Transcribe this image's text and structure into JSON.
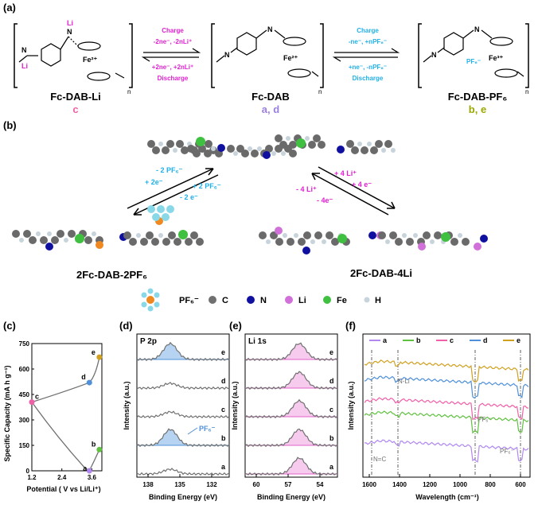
{
  "panel_a": {
    "label": "(a)",
    "left_arrow": {
      "top": [
        "Charge",
        "-2ne⁻, -2nLi⁺"
      ],
      "bottom": [
        "+2ne⁻, +2nLi⁺",
        "Discharge"
      ]
    },
    "right_arrow": {
      "top": [
        "Charge",
        "-ne⁻, +nPF₆⁻"
      ],
      "bottom": [
        "+ne⁻, -nPF₆⁻",
        "Discharge"
      ]
    },
    "compounds": [
      {
        "name": "Fc-DAB-Li",
        "tag": "c",
        "tag_color": "#f060a8"
      },
      {
        "name": "Fc-DAB",
        "tag": "a, d",
        "tag_color": "#9a80e0"
      },
      {
        "name": "Fc-DAB-PF₆",
        "tag": "b, e",
        "tag_color": "#9aa800"
      }
    ],
    "atom_labels": {
      "li": "Li",
      "n": "N",
      "fe2": "Fe²⁺",
      "fe3": "Fe³⁺",
      "pf6": "PF₆⁻",
      "sub_n": "n"
    }
  },
  "panel_b": {
    "label": "(b)",
    "left_arrow": {
      "top": [
        "- 2 PF₆⁻",
        "+ 2e⁻"
      ],
      "bottom": [
        "+ 2 PF₆⁻",
        "- 2 e⁻"
      ]
    },
    "right_arrow": {
      "top": [
        "+ 4 Li⁺",
        "+ 4 e⁻"
      ],
      "bottom": [
        "- 4 Li⁺",
        "- 4e⁻"
      ]
    },
    "left_name": "2Fc-DAB-2PF₆",
    "right_name": "2Fc-DAB-4Li",
    "legend": [
      {
        "label": "PF₆⁻",
        "color": "#f08820"
      },
      {
        "label": "C",
        "color": "#707070"
      },
      {
        "label": "N",
        "color": "#1010a0"
      },
      {
        "label": "Li",
        "color": "#d070d8"
      },
      {
        "label": "Fe",
        "color": "#40c040"
      },
      {
        "label": "H",
        "color": "#c8d4dc"
      }
    ]
  },
  "panel_c": {
    "label": "(c)",
    "ylabel": "Specific Capacity (mA h g⁻¹)",
    "xlabel": "Potential ( V vs Li/Li⁺)",
    "yticks": [
      "0",
      "150",
      "300",
      "450",
      "600",
      "750"
    ],
    "xticks": [
      "1.2",
      "2.4",
      "3.6"
    ],
    "points": [
      {
        "label": "a",
        "color": "#b088f0"
      },
      {
        "label": "b",
        "color": "#60c040"
      },
      {
        "label": "c",
        "color": "#f060a8"
      },
      {
        "label": "d",
        "color": "#5090d8"
      },
      {
        "label": "e",
        "color": "#d0a020"
      }
    ]
  },
  "panel_d": {
    "label": "(d)",
    "title": "P 2p",
    "ylabel": "Intensity (a.u.)",
    "xlabel": "Binding Energy (eV)",
    "xticks": [
      "138",
      "135",
      "132"
    ],
    "traces": [
      "e",
      "d",
      "c",
      "b",
      "a"
    ],
    "annotation": "PF₆⁻"
  },
  "panel_e": {
    "label": "(e)",
    "title": "Li 1s",
    "ylabel": "Intensity (a.u.)",
    "xlabel": "Binding Energy (eV)",
    "xticks": [
      "60",
      "57",
      "54"
    ],
    "traces": [
      "e",
      "d",
      "c",
      "b",
      "a"
    ]
  },
  "panel_f": {
    "label": "(f)",
    "ylabel": "Intensity (a.u.)",
    "xlabel": "Wavelength (cm⁻¹)",
    "xticks": [
      "1600",
      "1400",
      "1200",
      "1000",
      "800",
      "600"
    ],
    "legend": [
      {
        "label": "a",
        "color": "#b088f0"
      },
      {
        "label": "b",
        "color": "#60c040"
      },
      {
        "label": "c",
        "color": "#f060a8"
      },
      {
        "label": "d",
        "color": "#5090d8"
      },
      {
        "label": "e",
        "color": "#d0a020"
      }
    ],
    "annotations": [
      "N-Li",
      "PF₆⁻",
      "PF₆⁻",
      "N=C"
    ]
  },
  "chart_data": [
    {
      "type": "scatter",
      "xlabel": "Potential ( V vs Li/Li⁺)",
      "ylabel": "Specific Capacity (mA h g⁻¹)",
      "xlim": [
        1.2,
        4.0
      ],
      "ylim": [
        0,
        750
      ],
      "series": [
        {
          "name": "a",
          "x": [
            3.5
          ],
          "y": [
            0
          ]
        },
        {
          "name": "b",
          "x": [
            3.9
          ],
          "y": [
            125
          ]
        },
        {
          "name": "c",
          "x": [
            1.2
          ],
          "y": [
            405
          ]
        },
        {
          "name": "d",
          "x": [
            3.5
          ],
          "y": [
            520
          ]
        },
        {
          "name": "e",
          "x": [
            3.9
          ],
          "y": [
            670
          ]
        }
      ]
    }
  ]
}
